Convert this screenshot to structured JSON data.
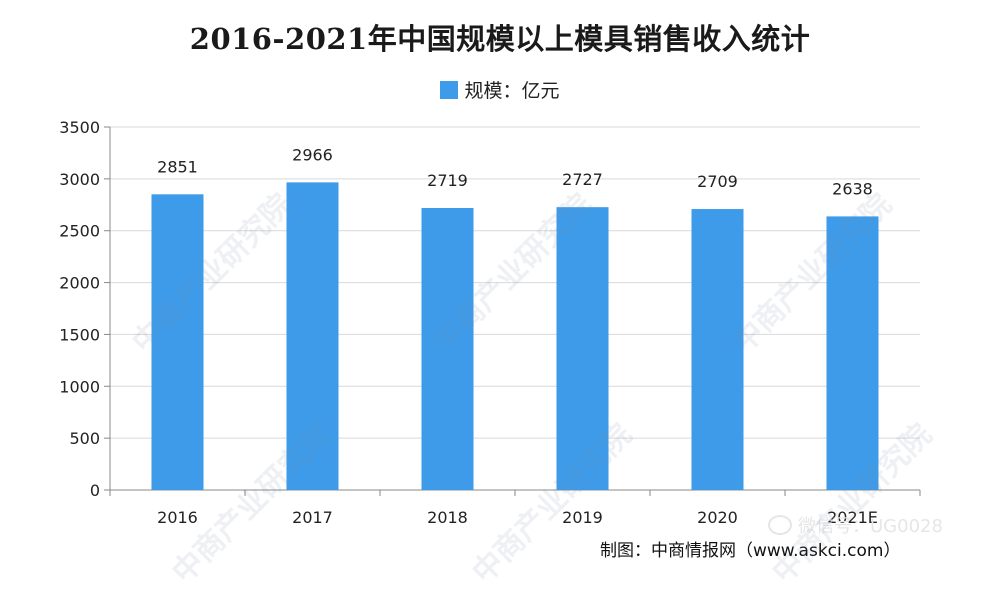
{
  "title": "2016-2021年中国规模以上模具销售收入统计",
  "legend": {
    "label": "规模：亿元"
  },
  "colors": {
    "bar": "#3d9be9",
    "axis": "#888888",
    "grid": "#d9d9d9"
  },
  "source": "制图：中商情报网（www.askci.com）",
  "wechat": "微信号：UG0028",
  "watermark": "中商产业研究院",
  "chart_data": {
    "type": "bar",
    "categories": [
      "2016",
      "2017",
      "2018",
      "2019",
      "2020",
      "2021E"
    ],
    "series": [
      {
        "name": "规模：亿元",
        "values": [
          2851,
          2966,
          2719,
          2727,
          2709,
          2638
        ]
      }
    ],
    "title": "2016-2021年中国规模以上模具销售收入统计",
    "xlabel": "",
    "ylabel": "",
    "ylim": [
      0,
      3500
    ],
    "yticks": [
      0,
      500,
      1000,
      1500,
      2000,
      2500,
      3000,
      3500
    ],
    "grid": true,
    "legend_position": "top-center",
    "data_labels": true
  }
}
